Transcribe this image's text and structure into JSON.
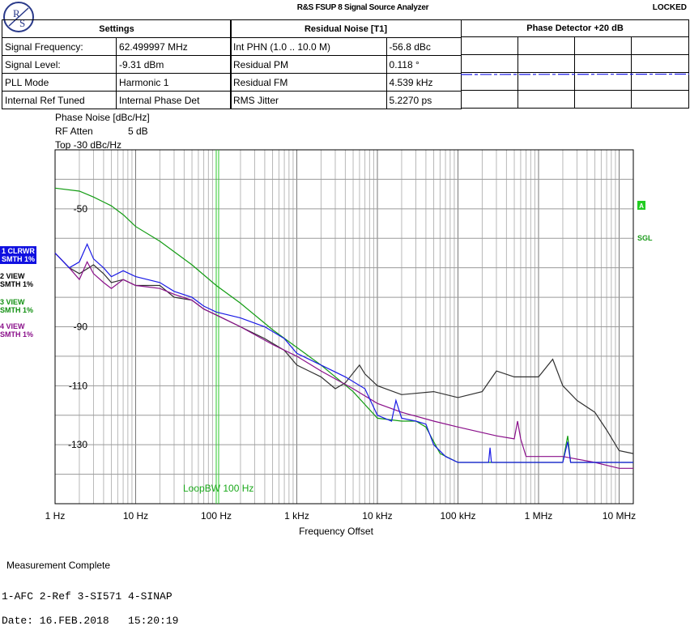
{
  "header": {
    "logo_text": "RS",
    "title": "R&S FSUP 8 Signal Source Analyzer",
    "status": "LOCKED"
  },
  "settings": {
    "title": "Settings",
    "rows": [
      {
        "label": "Signal Frequency:",
        "value": "62.499997 MHz"
      },
      {
        "label": "Signal Level:",
        "value": "-9.31 dBm"
      },
      {
        "label": "PLL Mode",
        "value": "Harmonic 1"
      },
      {
        "label": "Internal Ref Tuned",
        "value": "Internal Phase Det"
      }
    ]
  },
  "residual": {
    "title": "Residual Noise [T1]",
    "rows": [
      {
        "label": "Int PHN (1.0 .. 10.0 M)",
        "value": "-56.8 dBc"
      },
      {
        "label": "Residual PM",
        "value": "0.118 °"
      },
      {
        "label": "Residual FM",
        "value": "4.539 kHz"
      },
      {
        "label": "RMS Jitter",
        "value": "5.2270 ps"
      }
    ]
  },
  "phase_detector": {
    "title": "Phase Detector +20 dB"
  },
  "axis_info": {
    "unit": "Phase Noise [dBc/Hz]",
    "rf_atten_label": "RF Atten",
    "rf_atten_value": "5 dB",
    "top": "Top -30 dBc/Hz"
  },
  "traces": [
    {
      "line1": "1 CLRWR",
      "line2": "SMTH 1%",
      "color": "#1a1ae6"
    },
    {
      "line1": "2 VIEW",
      "line2": "SMTH 1%",
      "color": "#303030"
    },
    {
      "line1": "3 VIEW",
      "line2": "SMTH 1%",
      "color": "#129c12"
    },
    {
      "line1": "4 VIEW",
      "line2": "SMTH 1%",
      "color": "#8a0f8a"
    }
  ],
  "markers": {
    "a": "A",
    "sgl": "SGL",
    "loop_bw": "LoopBW 100 Hz"
  },
  "footer": {
    "status": "Measurement Complete",
    "legend": "1-AFC 2-Ref 3-SI571 4-SINAP",
    "date": "Date: 16.FEB.2018   15:20:19"
  },
  "chart_data": {
    "type": "line",
    "xlabel": "Frequency Offset",
    "ylabel": "Phase Noise [dBc/Hz]",
    "x_scale": "log",
    "xlim": [
      1,
      15000000
    ],
    "ylim": [
      -150,
      -30
    ],
    "grid": true,
    "x_ticks": [
      {
        "value": 1,
        "label": "1 Hz"
      },
      {
        "value": 10,
        "label": "10 Hz"
      },
      {
        "value": 100,
        "label": "100 Hz"
      },
      {
        "value": 1000,
        "label": "1 kHz"
      },
      {
        "value": 10000,
        "label": "10 kHz"
      },
      {
        "value": 100000,
        "label": "100 kHz"
      },
      {
        "value": 1000000,
        "label": "1 MHz"
      },
      {
        "value": 10000000,
        "label": "10 MHz"
      }
    ],
    "y_ticks": [
      {
        "value": -50,
        "label": "-50"
      },
      {
        "value": -90,
        "label": "-90"
      },
      {
        "value": -110,
        "label": "-110"
      },
      {
        "value": -130,
        "label": "-130"
      }
    ],
    "loop_bw_hz": 100,
    "series": [
      {
        "name": "1 CLRWR",
        "color": "#1a1ae6",
        "points": [
          [
            1,
            -65
          ],
          [
            1.5,
            -70
          ],
          [
            2,
            -68
          ],
          [
            2.5,
            -62
          ],
          [
            3,
            -67
          ],
          [
            4,
            -70
          ],
          [
            5,
            -73
          ],
          [
            7,
            -71
          ],
          [
            10,
            -73
          ],
          [
            20,
            -75
          ],
          [
            30,
            -78
          ],
          [
            50,
            -80
          ],
          [
            70,
            -83
          ],
          [
            100,
            -85
          ],
          [
            200,
            -87
          ],
          [
            400,
            -90
          ],
          [
            700,
            -94
          ],
          [
            1000,
            -99
          ],
          [
            2000,
            -103
          ],
          [
            4000,
            -107
          ],
          [
            7000,
            -111
          ],
          [
            10000,
            -120
          ],
          [
            15000,
            -122
          ],
          [
            17000,
            -115
          ],
          [
            20000,
            -121
          ],
          [
            30000,
            -122
          ],
          [
            40000,
            -123
          ],
          [
            50000,
            -130
          ],
          [
            70000,
            -134
          ],
          [
            100000,
            -136
          ],
          [
            200000,
            -136
          ],
          [
            240000,
            -136
          ],
          [
            250000,
            -131
          ],
          [
            260000,
            -136
          ],
          [
            500000,
            -136
          ],
          [
            1000000,
            -136
          ],
          [
            2000000,
            -136
          ],
          [
            2300000,
            -129
          ],
          [
            2500000,
            -136
          ],
          [
            5000000,
            -136
          ],
          [
            15000000,
            -136
          ]
        ]
      },
      {
        "name": "2 VIEW",
        "color": "#303030",
        "points": [
          [
            1,
            -65
          ],
          [
            1.5,
            -70
          ],
          [
            2,
            -72
          ],
          [
            3,
            -69
          ],
          [
            4,
            -72
          ],
          [
            5,
            -75
          ],
          [
            7,
            -74
          ],
          [
            10,
            -76
          ],
          [
            20,
            -76
          ],
          [
            30,
            -80
          ],
          [
            50,
            -81
          ],
          [
            70,
            -84
          ],
          [
            100,
            -86
          ],
          [
            200,
            -90
          ],
          [
            400,
            -94
          ],
          [
            700,
            -98
          ],
          [
            1000,
            -103
          ],
          [
            2000,
            -107
          ],
          [
            3000,
            -111
          ],
          [
            4000,
            -109
          ],
          [
            6000,
            -103
          ],
          [
            7000,
            -106
          ],
          [
            10000,
            -110
          ],
          [
            20000,
            -113
          ],
          [
            50000,
            -112
          ],
          [
            100000,
            -114
          ],
          [
            200000,
            -112
          ],
          [
            300000,
            -105
          ],
          [
            500000,
            -107
          ],
          [
            1000000,
            -107
          ],
          [
            1500000,
            -101
          ],
          [
            2000000,
            -110
          ],
          [
            3000000,
            -115
          ],
          [
            5000000,
            -119
          ],
          [
            7000000,
            -125
          ],
          [
            10000000,
            -132
          ],
          [
            15000000,
            -133
          ]
        ]
      },
      {
        "name": "3 VIEW",
        "color": "#129c12",
        "points": [
          [
            1,
            -43
          ],
          [
            2,
            -44
          ],
          [
            3,
            -46
          ],
          [
            5,
            -49
          ],
          [
            7,
            -52
          ],
          [
            10,
            -56
          ],
          [
            20,
            -61
          ],
          [
            50,
            -69
          ],
          [
            100,
            -76
          ],
          [
            200,
            -82
          ],
          [
            500,
            -91
          ],
          [
            1000,
            -97
          ],
          [
            2000,
            -103
          ],
          [
            5000,
            -112
          ],
          [
            10000,
            -121
          ],
          [
            20000,
            -122
          ],
          [
            30000,
            -122
          ],
          [
            40000,
            -124
          ],
          [
            60000,
            -133
          ],
          [
            100000,
            -136
          ],
          [
            500000,
            -136
          ],
          [
            1000000,
            -136
          ],
          [
            2000000,
            -136
          ],
          [
            2300000,
            -127
          ],
          [
            2500000,
            -136
          ],
          [
            5000000,
            -136
          ],
          [
            15000000,
            -136
          ]
        ]
      },
      {
        "name": "4 VIEW",
        "color": "#8a0f8a",
        "points": [
          [
            1,
            -65
          ],
          [
            1.5,
            -70
          ],
          [
            2,
            -74
          ],
          [
            2.5,
            -68
          ],
          [
            3,
            -72
          ],
          [
            4,
            -75
          ],
          [
            5,
            -77
          ],
          [
            7,
            -74
          ],
          [
            10,
            -76
          ],
          [
            20,
            -77
          ],
          [
            30,
            -79
          ],
          [
            50,
            -81
          ],
          [
            70,
            -84
          ],
          [
            100,
            -86
          ],
          [
            200,
            -90
          ],
          [
            500,
            -96
          ],
          [
            1000,
            -100
          ],
          [
            2000,
            -105
          ],
          [
            5000,
            -111
          ],
          [
            10000,
            -116
          ],
          [
            20000,
            -119
          ],
          [
            50000,
            -122
          ],
          [
            100000,
            -124
          ],
          [
            300000,
            -127
          ],
          [
            500000,
            -128
          ],
          [
            550000,
            -122
          ],
          [
            600000,
            -128
          ],
          [
            700000,
            -134
          ],
          [
            1000000,
            -134
          ],
          [
            2000000,
            -134
          ],
          [
            5000000,
            -136
          ],
          [
            10000000,
            -138
          ],
          [
            15000000,
            -138
          ]
        ]
      }
    ]
  }
}
